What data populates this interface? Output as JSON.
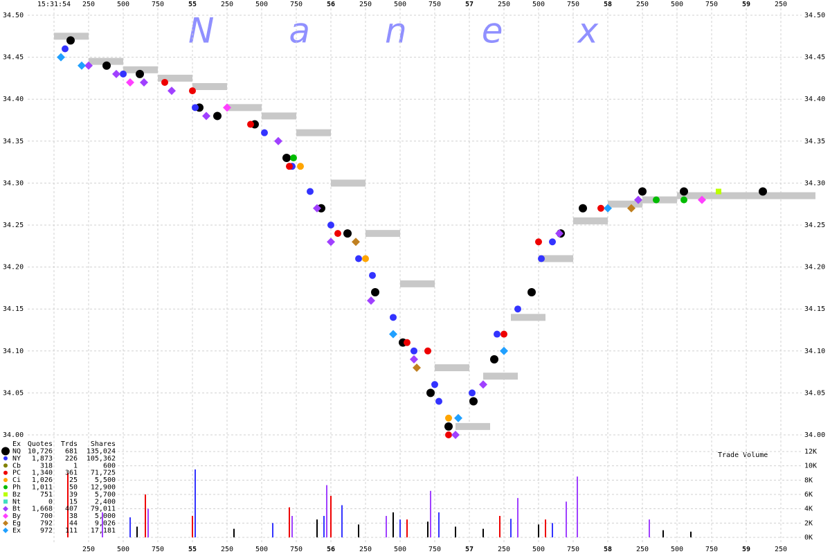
{
  "chart_data": {
    "type": "scatter",
    "watermark": "Nanex",
    "volume_label": "Trade Volume",
    "xlim": [
      53.8,
      59.4
    ],
    "ylim": [
      34.0,
      34.5
    ],
    "vlim": [
      0,
      12000
    ],
    "grid": true,
    "xticks": [
      {
        "value": 54,
        "label": "15:31:54"
      },
      {
        "value": 54.25,
        "label": "250"
      },
      {
        "value": 54.5,
        "label": "500"
      },
      {
        "value": 54.75,
        "label": "750"
      },
      55,
      {
        "value": 55.25,
        "label": "250"
      },
      {
        "value": 55.5,
        "label": "500"
      },
      {
        "value": 55.75,
        "label": "750"
      },
      56,
      {
        "value": 56.25,
        "label": "250"
      },
      {
        "value": 56.5,
        "label": "500"
      },
      {
        "value": 56.75,
        "label": "750"
      },
      57,
      {
        "value": 57.25,
        "label": "250"
      },
      {
        "value": 57.5,
        "label": "500"
      },
      {
        "value": 57.75,
        "label": "750"
      },
      58,
      {
        "value": 58.25,
        "label": "250"
      },
      {
        "value": 58.5,
        "label": "500"
      },
      {
        "value": 58.75,
        "label": "750"
      },
      59,
      {
        "value": 59.25,
        "label": "250"
      }
    ],
    "bottom_xticks": [
      {
        "value": 54.25,
        "label": "250"
      },
      {
        "value": 54.5,
        "label": "500"
      },
      {
        "value": 54.75,
        "label": "750"
      },
      55,
      {
        "value": 55.25,
        "label": "250"
      },
      {
        "value": 55.5,
        "label": "500"
      },
      {
        "value": 55.75,
        "label": "750"
      },
      56,
      {
        "value": 56.25,
        "label": "250"
      },
      {
        "value": 56.5,
        "label": "500"
      },
      {
        "value": 56.75,
        "label": "750"
      },
      57,
      {
        "value": 57.25,
        "label": "250"
      },
      {
        "value": 57.5,
        "label": "500"
      },
      {
        "value": 57.75,
        "label": "750"
      },
      58,
      {
        "value": 58.25,
        "label": "250"
      },
      {
        "value": 58.5,
        "label": "500"
      },
      {
        "value": 58.75,
        "label": "750"
      },
      59,
      {
        "value": 59.25,
        "label": "250"
      }
    ],
    "yticks": [
      {
        "value": 34.5,
        "label": "34.50"
      },
      34.45,
      {
        "value": 34.4,
        "label": "34.40"
      },
      34.35,
      {
        "value": 34.3,
        "label": "34.30"
      },
      34.25,
      {
        "value": 34.2,
        "label": "34.20"
      },
      34.15,
      {
        "value": 34.1,
        "label": "34.10"
      },
      34.05,
      {
        "value": 34,
        "label": "34.00"
      }
    ],
    "vticks": [
      {
        "value": 12000,
        "label": "12K"
      },
      {
        "value": 10000,
        "label": "10K"
      },
      {
        "value": 8000,
        "label": "8K"
      },
      {
        "value": 6000,
        "label": "6K"
      },
      {
        "value": 4000,
        "label": "4K"
      },
      {
        "value": 2000,
        "label": "2K"
      },
      {
        "value": 0,
        "label": "0K"
      }
    ],
    "legend_header": [
      "Ex",
      "Quotes",
      "Trds",
      "Shares"
    ],
    "series": [
      {
        "name": "NQ",
        "color": "#000000",
        "marker": "large-circle",
        "quotes": "10,726",
        "trades": "681",
        "shares": "135,024",
        "x": [
          54.12,
          54.38,
          54.62,
          55.05,
          55.18,
          55.45,
          55.68,
          55.93,
          56.12,
          56.32,
          56.52,
          56.72,
          56.85,
          57.03,
          57.18,
          57.45,
          57.66,
          57.82,
          58.25,
          58.55,
          59.12
        ],
        "values": [
          34.47,
          34.44,
          34.43,
          34.39,
          34.38,
          34.37,
          34.33,
          34.27,
          34.24,
          34.17,
          34.11,
          34.05,
          34.01,
          34.04,
          34.09,
          34.17,
          34.24,
          34.27,
          34.29,
          34.29,
          34.29
        ]
      },
      {
        "name": "NY",
        "color": "#3333ff",
        "marker": "circle",
        "quotes": "1,873",
        "trades": "226",
        "shares": "105,362",
        "x": [
          54.08,
          54.5,
          55.02,
          55.52,
          55.72,
          55.85,
          56.0,
          56.2,
          56.3,
          56.45,
          56.6,
          56.75,
          56.78,
          57.02,
          57.2,
          57.35,
          57.52,
          57.6
        ],
        "values": [
          34.46,
          34.43,
          34.39,
          34.36,
          34.32,
          34.29,
          34.25,
          34.21,
          34.19,
          34.14,
          34.1,
          34.06,
          34.04,
          34.05,
          34.12,
          34.15,
          34.21,
          34.23
        ]
      },
      {
        "name": "Cb",
        "color": "#808000",
        "marker": "circle",
        "quotes": "318",
        "trades": "1",
        "shares": "600",
        "x": [],
        "values": []
      },
      {
        "name": "PC",
        "color": "#ee0000",
        "marker": "circle",
        "quotes": "1,340",
        "trades": "361",
        "shares": "71,725",
        "x": [
          54.8,
          55.0,
          55.42,
          55.7,
          56.05,
          56.55,
          56.7,
          56.85,
          57.25,
          57.5,
          57.95
        ],
        "values": [
          34.42,
          34.41,
          34.37,
          34.32,
          34.24,
          34.11,
          34.1,
          34.0,
          34.12,
          34.23,
          34.27
        ]
      },
      {
        "name": "Ci",
        "color": "#ffa500",
        "marker": "circle",
        "quotes": "1,026",
        "trades": "25",
        "shares": "5,500",
        "x": [
          55.78,
          56.85,
          56.25
        ],
        "values": [
          34.32,
          34.02,
          34.21
        ]
      },
      {
        "name": "Ph",
        "color": "#00bb00",
        "marker": "circle",
        "quotes": "1,011",
        "trades": "50",
        "shares": "12,900",
        "x": [
          55.73,
          58.35,
          58.55
        ],
        "values": [
          34.33,
          34.28,
          34.28
        ]
      },
      {
        "name": "Bz",
        "color": "#bbff00",
        "marker": "square",
        "quotes": "751",
        "trades": "39",
        "shares": "5,700",
        "x": [
          58.8
        ],
        "values": [
          34.29
        ]
      },
      {
        "name": "Nt",
        "color": "#40e0c0",
        "marker": "square",
        "quotes": "0",
        "trades": "15",
        "shares": "2,400",
        "x": [],
        "values": []
      },
      {
        "name": "Bt",
        "color": "#a040ff",
        "marker": "diamond",
        "quotes": "1,668",
        "trades": "407",
        "shares": "79,011",
        "x": [
          54.25,
          54.45,
          54.65,
          54.85,
          55.1,
          55.62,
          55.9,
          56.0,
          56.29,
          56.6,
          56.9,
          57.1,
          57.65,
          58.22
        ],
        "values": [
          34.44,
          34.43,
          34.42,
          34.41,
          34.38,
          34.35,
          34.27,
          34.23,
          34.16,
          34.09,
          34.0,
          34.06,
          34.24,
          34.28
        ]
      },
      {
        "name": "By",
        "color": "#ff40ff",
        "marker": "diamond",
        "quotes": "700",
        "trades": "38",
        "shares": "5,000",
        "x": [
          54.55,
          55.25,
          58.68
        ],
        "values": [
          34.42,
          34.39,
          34.28
        ]
      },
      {
        "name": "Eg",
        "color": "#c08020",
        "marker": "diamond",
        "quotes": "792",
        "trades": "44",
        "shares": "9,026",
        "x": [
          56.62,
          58.17,
          56.18
        ],
        "values": [
          34.08,
          34.27,
          34.23
        ]
      },
      {
        "name": "Ex",
        "color": "#20a0ff",
        "marker": "diamond",
        "quotes": "972",
        "trades": "111",
        "shares": "17,181",
        "x": [
          54.05,
          54.2,
          56.45,
          56.92,
          57.25,
          58.0
        ],
        "values": [
          34.45,
          34.44,
          34.12,
          34.02,
          34.1,
          34.27
        ]
      }
    ],
    "nbbo": {
      "color": "#c8c8c8",
      "x": [
        54.0,
        54.25,
        54.5,
        54.75,
        55.0,
        55.25,
        55.5,
        55.75,
        56.0,
        56.25,
        56.5,
        56.75,
        56.9,
        57.1,
        57.3,
        57.5,
        57.75,
        58.0,
        58.25,
        58.5,
        58.75,
        59.0,
        59.25
      ],
      "values": [
        34.475,
        34.445,
        34.435,
        34.425,
        34.415,
        34.39,
        34.38,
        34.36,
        34.3,
        34.24,
        34.18,
        34.08,
        34.01,
        34.07,
        34.14,
        34.21,
        34.255,
        34.275,
        34.28,
        34.285,
        34.285,
        34.285,
        34.285
      ]
    },
    "volume_series": [
      {
        "color": "#000000",
        "x": [
          54.6,
          55.3,
          55.9,
          56.2,
          56.45,
          56.7,
          56.9,
          57.1,
          57.5,
          58.4,
          58.6
        ],
        "values": [
          1500,
          1200,
          2500,
          1800,
          3500,
          2200,
          1500,
          1200,
          1800,
          1000,
          800
        ]
      },
      {
        "color": "#3333ff",
        "x": [
          54.55,
          55.02,
          55.58,
          55.95,
          56.08,
          56.5,
          56.78,
          57.3,
          57.6
        ],
        "values": [
          2800,
          9500,
          2000,
          3000,
          4500,
          2500,
          3500,
          2600,
          2000
        ]
      },
      {
        "color": "#a040ff",
        "x": [
          54.35,
          54.68,
          55.72,
          55.97,
          56.4,
          56.72,
          57.35,
          57.7,
          57.78,
          58.3
        ],
        "values": [
          3500,
          4000,
          3000,
          7300,
          3000,
          6500,
          5500,
          5000,
          8500,
          2500
        ]
      },
      {
        "color": "#ee0000",
        "x": [
          54.1,
          54.66,
          55.0,
          55.7,
          56.0,
          56.55,
          57.22,
          57.55
        ],
        "values": [
          9000,
          6000,
          3000,
          4200,
          5800,
          2500,
          3000,
          2500
        ]
      }
    ]
  }
}
